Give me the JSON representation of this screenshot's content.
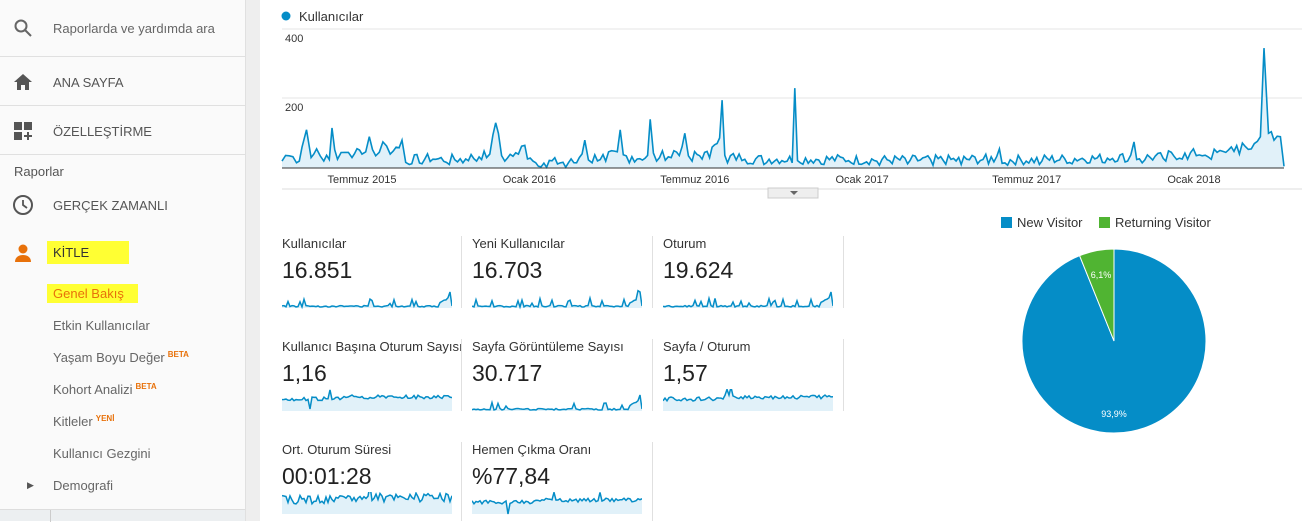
{
  "sidebar": {
    "search_placeholder": "Raporlarda ve yardımda ara",
    "home": "ANA SAYFA",
    "customization": "ÖZELLEŞTİRME",
    "reports_heading": "Raporlar",
    "realtime": "GERÇEK ZAMANLI",
    "audience": "KİTLE",
    "audience_items": [
      {
        "label": "Genel Bakış",
        "badge": ""
      },
      {
        "label": "Etkin Kullanıcılar",
        "badge": ""
      },
      {
        "label": "Yaşam Boyu Değer",
        "badge": "BETA"
      },
      {
        "label": "Kohort Analizi",
        "badge": "BETA"
      },
      {
        "label": "Kitleler",
        "badge": "YENİ"
      },
      {
        "label": "Kullanıcı Gezgini",
        "badge": ""
      },
      {
        "label": "Demografi",
        "badge": ""
      }
    ]
  },
  "colors": {
    "accent": "#058dc7",
    "orange": "#e8710a",
    "highlight": "#ffff33",
    "returning": "#50b432"
  },
  "chart_data": [
    {
      "type": "area",
      "legend": [
        "Kullanıcılar"
      ],
      "ylim": [
        0,
        400
      ],
      "yticks": [
        "400",
        "200"
      ],
      "xticks": [
        {
          "label": "Temmuz 2015",
          "date": "2015-07-01"
        },
        {
          "label": "Ocak 2016",
          "date": "2016-01-01"
        },
        {
          "label": "Temmuz 2016",
          "date": "2016-07-01"
        },
        {
          "label": "Ocak 2017",
          "date": "2017-01-01"
        },
        {
          "label": "Temmuz 2017",
          "date": "2017-07-01"
        },
        {
          "label": "Ocak 2018",
          "date": "2018-01-01"
        }
      ],
      "xrange": [
        "2015-04-04",
        "2018-04-10"
      ],
      "series": [
        {
          "name": "Kullanıcılar",
          "points": [
            [
              "2015-04-04",
              20
            ],
            [
              "2015-04-12",
              35
            ],
            [
              "2015-04-20",
              15
            ],
            [
              "2015-04-26",
              60
            ],
            [
              "2015-05-01",
              110
            ],
            [
              "2015-05-06",
              30
            ],
            [
              "2015-05-12",
              55
            ],
            [
              "2015-05-20",
              20
            ],
            [
              "2015-05-29",
              115
            ],
            [
              "2015-06-04",
              25
            ],
            [
              "2015-06-12",
              45
            ],
            [
              "2015-06-20",
              30
            ],
            [
              "2015-07-01",
              40
            ],
            [
              "2015-07-09",
              90
            ],
            [
              "2015-07-16",
              35
            ],
            [
              "2015-07-24",
              75
            ],
            [
              "2015-08-01",
              40
            ],
            [
              "2015-08-14",
              80
            ],
            [
              "2015-08-22",
              10
            ],
            [
              "2015-09-05",
              12
            ],
            [
              "2015-09-20",
              25
            ],
            [
              "2015-10-05",
              10
            ],
            [
              "2015-10-20",
              15
            ],
            [
              "2015-11-04",
              20
            ],
            [
              "2015-11-15",
              30
            ],
            [
              "2015-11-22",
              95
            ],
            [
              "2015-11-28",
              100
            ],
            [
              "2015-12-05",
              20
            ],
            [
              "2015-12-20",
              40
            ],
            [
              "2015-12-27",
              65
            ],
            [
              "2016-01-05",
              20
            ],
            [
              "2016-01-20",
              2
            ],
            [
              "2016-02-10",
              2
            ],
            [
              "2016-02-25",
              30
            ],
            [
              "2016-03-02",
              80
            ],
            [
              "2016-03-10",
              15
            ],
            [
              "2016-03-25",
              20
            ],
            [
              "2016-04-10",
              110
            ],
            [
              "2016-04-20",
              15
            ],
            [
              "2016-05-13",
              140
            ],
            [
              "2016-05-20",
              20
            ],
            [
              "2016-06-05",
              30
            ],
            [
              "2016-06-20",
              100
            ],
            [
              "2016-06-28",
              20
            ],
            [
              "2016-07-20",
              60
            ],
            [
              "2016-07-31",
              195
            ],
            [
              "2016-08-06",
              15
            ],
            [
              "2016-08-25",
              25
            ],
            [
              "2016-09-15",
              10
            ],
            [
              "2016-10-19",
              230
            ],
            [
              "2016-10-25",
              15
            ],
            [
              "2016-11-20",
              10
            ],
            [
              "2016-12-20",
              15
            ],
            [
              "2017-01-20",
              8
            ],
            [
              "2017-02-20",
              12
            ],
            [
              "2017-03-20",
              8
            ],
            [
              "2017-04-20",
              10
            ],
            [
              "2017-05-20",
              12
            ],
            [
              "2017-06-01",
              55
            ],
            [
              "2017-06-10",
              8
            ],
            [
              "2017-07-15",
              10
            ],
            [
              "2017-08-20",
              12
            ],
            [
              "2017-09-25",
              15
            ],
            [
              "2017-10-20",
              20
            ],
            [
              "2017-10-27",
              75
            ],
            [
              "2017-11-05",
              15
            ],
            [
              "2017-12-01",
              20
            ],
            [
              "2017-12-25",
              25
            ],
            [
              "2018-01-10",
              35
            ],
            [
              "2018-01-20",
              25
            ],
            [
              "2018-02-05",
              45
            ],
            [
              "2018-02-20",
              40
            ],
            [
              "2018-03-05",
              55
            ],
            [
              "2018-03-15",
              90
            ],
            [
              "2018-03-19",
              345
            ],
            [
              "2018-03-24",
              100
            ],
            [
              "2018-03-30",
              80
            ],
            [
              "2018-04-06",
              90
            ],
            [
              "2018-04-10",
              5
            ]
          ]
        }
      ]
    },
    {
      "type": "pie",
      "legend": [
        "New Visitor",
        "Returning Visitor"
      ],
      "slices": [
        {
          "name": "New Visitor",
          "value": 93.9,
          "label": "93,9%"
        },
        {
          "name": "Returning Visitor",
          "value": 6.1,
          "label": "6,1%"
        }
      ]
    }
  ],
  "metrics": [
    {
      "label": "Kullanıcılar",
      "value": "16.851"
    },
    {
      "label": "Yeni Kullanıcılar",
      "value": "16.703"
    },
    {
      "label": "Oturum",
      "value": "19.624"
    },
    {
      "label": "Kullanıcı Başına Oturum Sayısı",
      "value": "1,16"
    },
    {
      "label": "Sayfa Görüntüleme Sayısı",
      "value": "30.717"
    },
    {
      "label": "Sayfa / Oturum",
      "value": "1,57"
    },
    {
      "label": "Ort. Oturum Süresi",
      "value": "00:01:28"
    },
    {
      "label": "Hemen Çıkma Oranı",
      "value": "%77,84"
    }
  ]
}
